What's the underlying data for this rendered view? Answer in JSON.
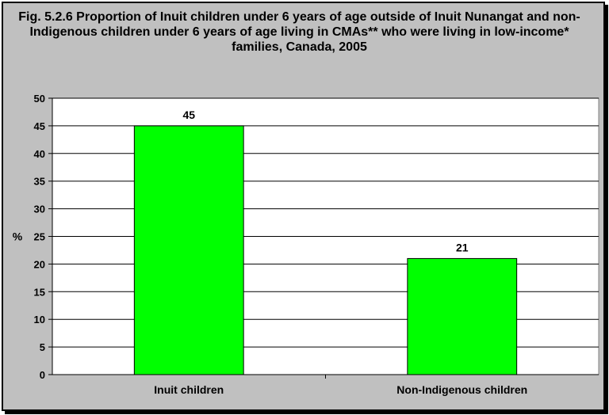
{
  "chart_data": {
    "type": "bar",
    "title": "Fig. 5.2.6 Proportion of Inuit children under 6 years of age outside of Inuit Nunangat and non-Indigenous children under 6 years of age living in CMAs** who were living in low-income* families, Canada, 2005",
    "categories": [
      "Inuit children",
      "Non-Indigenous children"
    ],
    "values": [
      45,
      21
    ],
    "data_labels": [
      "45",
      "21"
    ],
    "xlabel": "",
    "ylabel": "%",
    "ylim": [
      0,
      50
    ],
    "yticks": [
      0,
      5,
      10,
      15,
      20,
      25,
      30,
      35,
      40,
      45,
      50
    ],
    "grid": true,
    "legend": "none",
    "bar_color": "#00ff00",
    "plot_background": "#ffffff",
    "chart_background": "#c0c0c0"
  }
}
